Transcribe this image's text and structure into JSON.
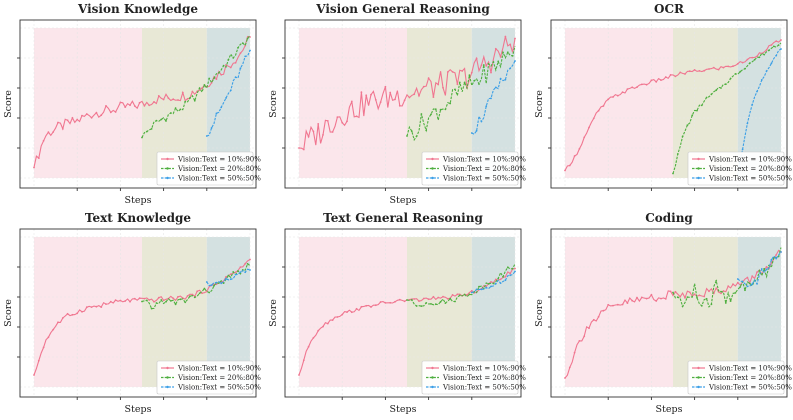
{
  "figure": {
    "colors": {
      "series_1": "#f07690",
      "series_2": "#4faf3f",
      "series_3": "#3b9fe6",
      "region_1": "#fbe3e9",
      "region_2": "#e6e6d2",
      "region_3": "#cfdede"
    }
  },
  "chart_data": [
    {
      "type": "line",
      "title": "Vision Knowledge",
      "xlabel": "Steps",
      "ylabel": "Score",
      "xlim": [
        0,
        100
      ],
      "ylim": [
        0,
        100
      ],
      "grid": true,
      "legend": "lower-right",
      "series": [
        {
          "name": "Vision:Text = 10%:90%",
          "start": 0,
          "end": 100,
          "x": [
            0,
            5,
            10,
            15,
            20,
            25,
            30,
            35,
            40,
            45,
            50,
            55,
            60,
            65,
            70,
            75,
            80,
            85,
            90,
            95,
            100
          ],
          "values": [
            7,
            28,
            33,
            36,
            38,
            42,
            44,
            45,
            47,
            48,
            49,
            52,
            53,
            54,
            55,
            58,
            63,
            69,
            75,
            82,
            94
          ]
        },
        {
          "name": "Vision:Text = 20%:80%",
          "start": 50,
          "end": 100,
          "x": [
            50,
            55,
            60,
            65,
            70,
            75,
            80,
            85,
            90,
            95,
            100
          ],
          "values": [
            27,
            35,
            40,
            44,
            48,
            55,
            62,
            70,
            78,
            86,
            95
          ]
        },
        {
          "name": "Vision:Text = 50%:50%",
          "start": 80,
          "end": 100,
          "x": [
            80,
            85,
            90,
            95,
            100
          ],
          "values": [
            28,
            42,
            56,
            70,
            85
          ]
        }
      ]
    },
    {
      "type": "line",
      "title": "Vision General Reasoning",
      "xlabel": "Steps",
      "ylabel": "Score",
      "xlim": [
        0,
        100
      ],
      "ylim": [
        0,
        100
      ],
      "grid": true,
      "legend": "lower-right",
      "series": [
        {
          "name": "Vision:Text = 10%:90%",
          "start": 0,
          "end": 100,
          "x": [
            0,
            5,
            10,
            15,
            20,
            25,
            30,
            35,
            40,
            45,
            50,
            55,
            60,
            65,
            70,
            75,
            80,
            85,
            90,
            95,
            100
          ],
          "values": [
            20,
            26,
            31,
            38,
            43,
            46,
            49,
            52,
            53,
            55,
            57,
            58,
            60,
            62,
            64,
            66,
            70,
            75,
            80,
            86,
            93
          ]
        },
        {
          "name": "Vision:Text = 20%:80%",
          "start": 50,
          "end": 100,
          "x": [
            50,
            55,
            60,
            65,
            70,
            75,
            80,
            85,
            90,
            95,
            100
          ],
          "values": [
            28,
            34,
            40,
            46,
            52,
            58,
            63,
            68,
            74,
            80,
            88
          ]
        },
        {
          "name": "Vision:Text = 50%:50%",
          "start": 80,
          "end": 100,
          "x": [
            80,
            85,
            90,
            95,
            100
          ],
          "values": [
            30,
            42,
            54,
            66,
            78
          ]
        }
      ]
    },
    {
      "type": "line",
      "title": "OCR",
      "xlabel": "",
      "ylabel": "Score",
      "xlim": [
        0,
        100
      ],
      "ylim": [
        0,
        100
      ],
      "grid": true,
      "legend": "lower-right",
      "series": [
        {
          "name": "Vision:Text = 10%:90%",
          "start": 0,
          "end": 100,
          "x": [
            0,
            5,
            10,
            15,
            20,
            25,
            30,
            35,
            40,
            45,
            50,
            55,
            60,
            65,
            70,
            75,
            80,
            85,
            90,
            95,
            100
          ],
          "values": [
            5,
            15,
            30,
            44,
            52,
            56,
            59,
            62,
            64,
            66,
            68,
            70,
            71,
            72,
            73,
            74,
            76,
            79,
            83,
            88,
            92
          ]
        },
        {
          "name": "Vision:Text = 20%:80%",
          "start": 50,
          "end": 100,
          "x": [
            50,
            55,
            60,
            65,
            70,
            75,
            80,
            85,
            90,
            95,
            100
          ],
          "values": [
            3,
            30,
            44,
            52,
            58,
            64,
            70,
            76,
            81,
            86,
            90
          ]
        },
        {
          "name": "Vision:Text = 50%:50%",
          "start": 80,
          "end": 100,
          "x": [
            80,
            85,
            90,
            95,
            100
          ],
          "values": [
            2,
            42,
            62,
            76,
            86
          ]
        }
      ]
    },
    {
      "type": "line",
      "title": "Text Knowledge",
      "xlabel": "Steps",
      "ylabel": "Score",
      "xlim": [
        0,
        100
      ],
      "ylim": [
        0,
        100
      ],
      "grid": true,
      "legend": "lower-right",
      "series": [
        {
          "name": "Vision:Text = 10%:90%",
          "start": 0,
          "end": 100,
          "x": [
            0,
            5,
            10,
            15,
            20,
            25,
            30,
            35,
            40,
            45,
            50,
            55,
            60,
            65,
            70,
            75,
            80,
            85,
            90,
            95,
            100
          ],
          "values": [
            8,
            30,
            41,
            47,
            50,
            53,
            54,
            56,
            57,
            58,
            58,
            58,
            59,
            59,
            60,
            62,
            65,
            69,
            74,
            78,
            85
          ]
        },
        {
          "name": "Vision:Text = 20%:80%",
          "start": 50,
          "end": 100,
          "x": [
            50,
            55,
            60,
            65,
            70,
            75,
            80,
            85,
            90,
            95,
            100
          ],
          "values": [
            57,
            53,
            58,
            56,
            58,
            61,
            64,
            68,
            72,
            77,
            81
          ]
        },
        {
          "name": "Vision:Text = 50%:50%",
          "start": 80,
          "end": 100,
          "x": [
            80,
            85,
            90,
            95,
            100
          ],
          "values": [
            70,
            68,
            71,
            75,
            78
          ]
        }
      ]
    },
    {
      "type": "line",
      "title": "Text General Reasoning",
      "xlabel": "Steps",
      "ylabel": "Score",
      "xlim": [
        0,
        100
      ],
      "ylim": [
        0,
        100
      ],
      "grid": true,
      "legend": "lower-right",
      "series": [
        {
          "name": "Vision:Text = 10%:90%",
          "start": 0,
          "end": 100,
          "x": [
            0,
            5,
            10,
            15,
            20,
            25,
            30,
            35,
            40,
            45,
            50,
            55,
            60,
            65,
            70,
            75,
            80,
            85,
            90,
            95,
            100
          ],
          "values": [
            8,
            30,
            40,
            45,
            49,
            51,
            53,
            55,
            56,
            57,
            58,
            58,
            59,
            59,
            60,
            61,
            63,
            66,
            70,
            74,
            79
          ]
        },
        {
          "name": "Vision:Text = 20%:80%",
          "start": 50,
          "end": 100,
          "x": [
            50,
            55,
            60,
            65,
            70,
            75,
            80,
            85,
            90,
            95,
            100
          ],
          "values": [
            58,
            54,
            57,
            56,
            58,
            60,
            63,
            67,
            71,
            76,
            82
          ]
        },
        {
          "name": "Vision:Text = 50%:50%",
          "start": 80,
          "end": 100,
          "x": [
            80,
            85,
            90,
            95,
            100
          ],
          "values": [
            63,
            65,
            68,
            72,
            77
          ]
        }
      ]
    },
    {
      "type": "line",
      "title": "Coding",
      "xlabel": "Steps",
      "ylabel": "Score",
      "xlim": [
        0,
        100
      ],
      "ylim": [
        0,
        100
      ],
      "grid": true,
      "legend": "lower-right",
      "series": [
        {
          "name": "Vision:Text = 10%:90%",
          "start": 0,
          "end": 100,
          "x": [
            0,
            5,
            10,
            15,
            20,
            25,
            30,
            35,
            40,
            45,
            50,
            55,
            60,
            65,
            70,
            75,
            80,
            85,
            90,
            95,
            100
          ],
          "values": [
            6,
            25,
            40,
            46,
            52,
            55,
            57,
            58,
            60,
            60,
            62,
            62,
            63,
            63,
            64,
            66,
            68,
            71,
            76,
            82,
            90
          ]
        },
        {
          "name": "Vision:Text = 20%:80%",
          "start": 50,
          "end": 100,
          "x": [
            50,
            55,
            60,
            65,
            70,
            75,
            80,
            85,
            90,
            95,
            100
          ],
          "values": [
            63,
            55,
            64,
            52,
            66,
            58,
            68,
            65,
            75,
            80,
            93
          ]
        },
        {
          "name": "Vision:Text = 50%:50%",
          "start": 80,
          "end": 100,
          "x": [
            80,
            85,
            90,
            95,
            100
          ],
          "values": [
            72,
            62,
            74,
            80,
            90
          ]
        }
      ]
    }
  ]
}
